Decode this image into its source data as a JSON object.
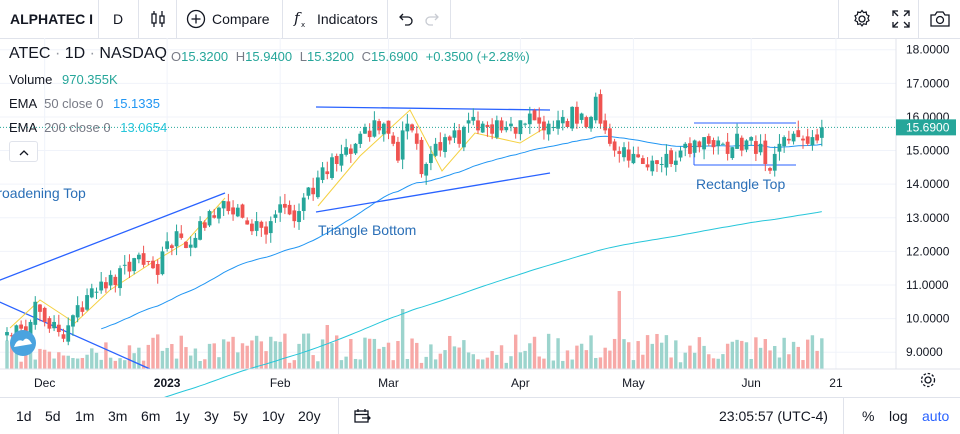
{
  "toolbar": {
    "symbol": "ALPHATEC I",
    "interval": "D",
    "compare_label": "Compare",
    "indicators_label": "Indicators",
    "icons": [
      "bar-style-icon",
      "plus-circle-icon",
      "fx-icon",
      "undo-icon",
      "redo-icon",
      "settings-icon",
      "fullscreen-icon",
      "camera-icon"
    ]
  },
  "legend": {
    "ticker": "ATEC",
    "interval": "1D",
    "exchange": "NASDAQ",
    "o_label": "O",
    "o_value": "15.3200",
    "h_label": "H",
    "h_value": "15.9400",
    "l_label": "L",
    "l_value": "15.3200",
    "c_label": "C",
    "c_value": "15.6900",
    "change": "+0.3500 (+2.28%)",
    "volume_label": "Volume",
    "volume_value": "970.355K",
    "ema50_label": "EMA",
    "ema50_params": "50 close 0",
    "ema50_value": "15.1335",
    "ema200_label": "EMA",
    "ema200_params": "200 close 0",
    "ema200_value": "13.0654",
    "collapse_icon": "chevron-up-icon"
  },
  "price_label": "15.6900",
  "bottom": {
    "ranges": [
      "1d",
      "5d",
      "1m",
      "3m",
      "6m",
      "1y",
      "3y",
      "5y",
      "10y",
      "20y"
    ],
    "time": "23:05:57 (UTC-4)",
    "percent_label": "%",
    "log_label": "log",
    "auto_label": "auto",
    "calendar_icon": "calendar-icon"
  },
  "colors": {
    "up": "#26a69a",
    "down": "#ef5350",
    "vol_up": "#9cd4cd",
    "vol_down": "#f7a9a7",
    "ema50": "#2196f3",
    "ema200": "#26c6da",
    "pattern": "#2962ff",
    "accent": "#2962ff"
  },
  "chart_data": {
    "type": "candlestick",
    "ylim": [
      8.5,
      18.2
    ],
    "y_ticks": [
      "18.0000",
      "17.0000",
      "16.0000",
      "15.0000",
      "14.0000",
      "13.0000",
      "12.0000",
      "11.0000",
      "10.0000",
      "9.0000"
    ],
    "y_tick_values": [
      18,
      17,
      16,
      15,
      14,
      13,
      12,
      11,
      10,
      9
    ],
    "x_tick_labels": [
      "Dec",
      "2023",
      "Feb",
      "Mar",
      "Apr",
      "May",
      "Jun",
      "21"
    ],
    "x_tick_index": [
      8,
      34,
      58,
      81,
      109,
      133,
      158,
      176
    ],
    "annotations": [
      "Broadening Top",
      "Triangle Bottom",
      "Rectangle Top"
    ],
    "series_close": [
      9.6,
      9.5,
      9.8,
      9.7,
      9.5,
      9.9,
      10.5,
      10.2,
      9.9,
      9.7,
      9.9,
      9.6,
      9.4,
      9.8,
      10.1,
      10.4,
      10.2,
      10.7,
      10.9,
      10.8,
      11.1,
      10.9,
      11.3,
      11.0,
      11.5,
      11.6,
      11.4,
      11.8,
      11.9,
      11.6,
      11.7,
      11.5,
      11.3,
      12.0,
      12.3,
      12.1,
      12.6,
      12.4,
      12.1,
      12.2,
      12.4,
      12.9,
      12.7,
      13.2,
      13.0,
      13.3,
      13.5,
      13.2,
      13.1,
      13.3,
      13.0,
      12.8,
      12.6,
      12.9,
      12.7,
      12.5,
      12.9,
      13.1,
      13.4,
      13.3,
      13.1,
      12.9,
      13.2,
      13.6,
      13.9,
      13.7,
      14.2,
      14.5,
      14.3,
      14.8,
      14.6,
      14.9,
      15.1,
      14.9,
      15.2,
      15.5,
      15.7,
      15.4,
      15.9,
      15.6,
      15.8,
      15.5,
      15.2,
      14.7,
      15.6,
      15.8,
      15.6,
      15.2,
      14.3,
      14.6,
      14.9,
      15.2,
      15.0,
      15.4,
      15.3,
      15.6,
      15.2,
      15.7,
      15.9,
      16.0,
      15.6,
      15.8,
      15.7,
      15.5,
      15.9,
      15.6,
      15.7,
      15.8,
      15.5,
      15.9,
      15.8,
      16.1,
      15.9,
      15.8,
      15.6,
      15.8,
      15.7,
      15.9,
      16.0,
      15.7,
      16.3,
      15.8,
      16.1,
      15.7,
      16.0,
      16.6,
      15.8,
      15.6,
      15.2,
      15.0,
      14.9,
      15.1,
      14.7,
      14.9,
      14.8,
      14.6,
      14.5,
      14.7,
      14.6,
      14.6,
      14.9,
      14.6,
      14.7,
      15.0,
      15.2,
      14.9,
      15.3,
      15.1,
      15.4,
      15.2,
      15.1,
      15.3,
      15.2,
      14.9,
      15.1,
      15.5,
      15.0,
      15.3,
      15.4,
      14.9,
      15.2,
      14.6,
      14.4,
      14.9,
      15.2,
      15.4,
      15.3,
      15.5,
      15.4,
      15.3,
      15.2,
      15.4,
      15.3,
      15.69
    ],
    "volume_label": "Volume",
    "ema50_end": 15.1335,
    "ema200_end": 13.0654
  }
}
